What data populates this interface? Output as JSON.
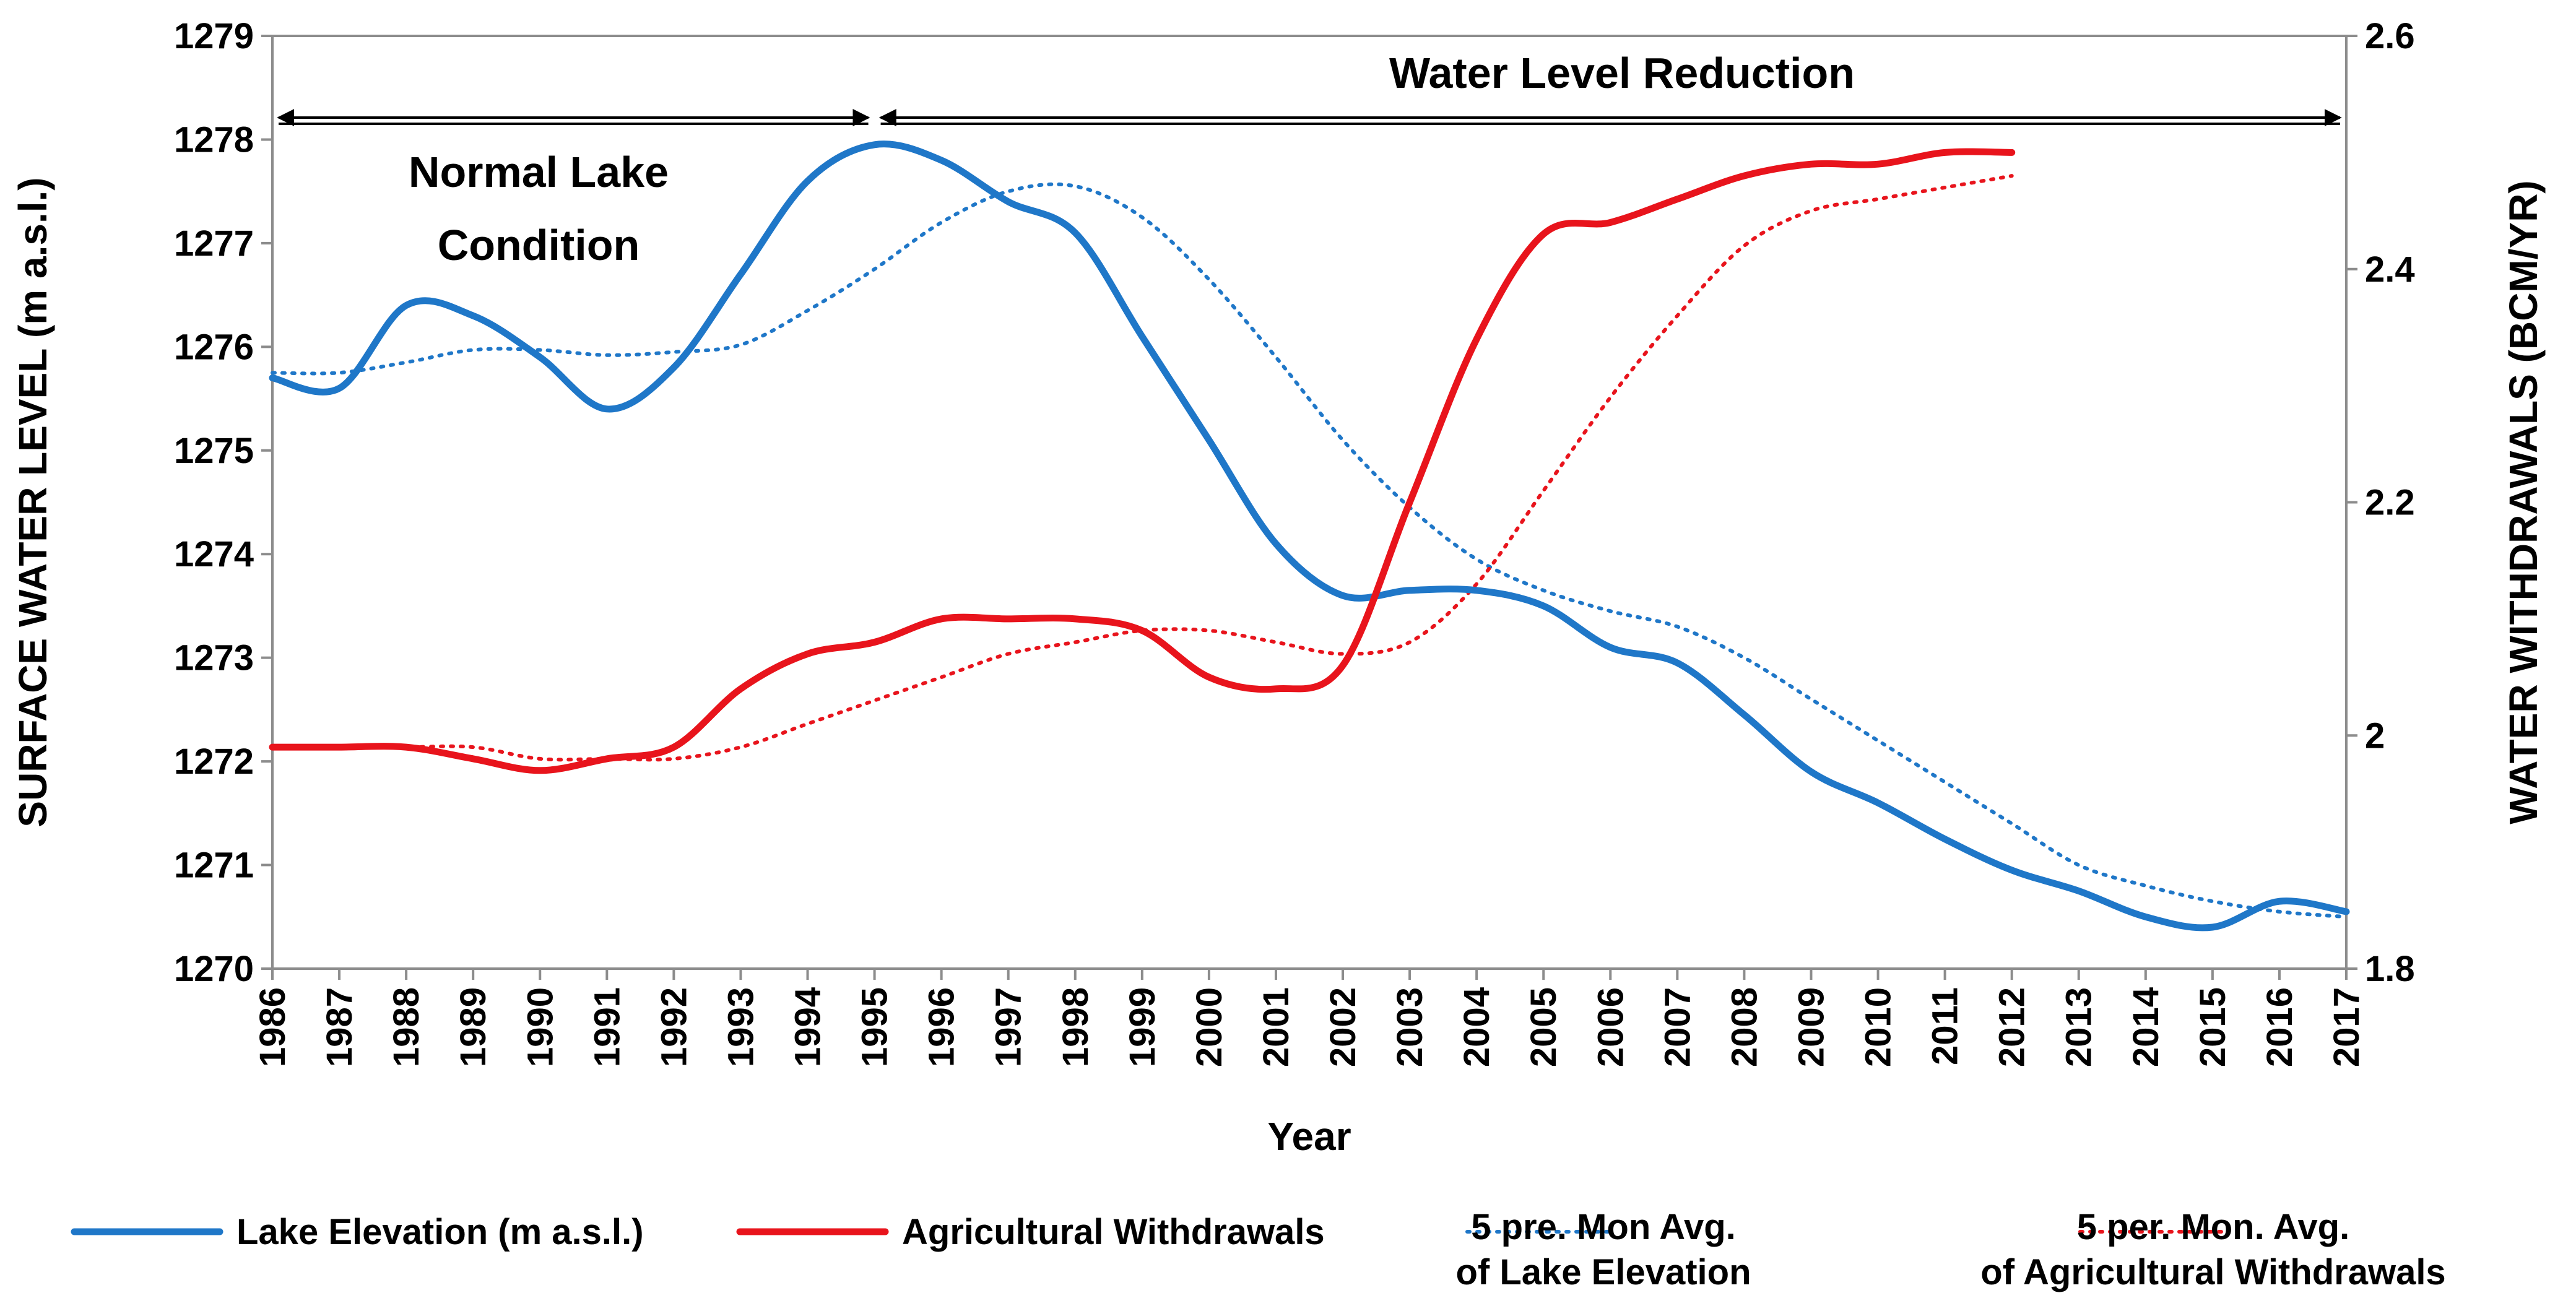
{
  "chart_data": {
    "type": "line",
    "title": "",
    "xlabel": "Year",
    "ylabel_left": "SURFACE WATER LEVEL (m a.s.l.)",
    "ylabel_right": "WATER WITHDRAWALS (BCM/YR)",
    "x": [
      1986,
      1987,
      1988,
      1989,
      1990,
      1991,
      1992,
      1993,
      1994,
      1995,
      1996,
      1997,
      1998,
      1999,
      2000,
      2001,
      2002,
      2003,
      2004,
      2005,
      2006,
      2007,
      2008,
      2009,
      2010,
      2011,
      2012,
      2013,
      2014,
      2015,
      2016,
      2017
    ],
    "x_tick_labels": [
      "1986",
      "1987",
      "1988",
      "1989",
      "1990",
      "1991",
      "1992",
      "1993",
      "1994",
      "1995",
      "1996",
      "1997",
      "1998",
      "1999",
      "2000",
      "2001",
      "2002",
      "2003",
      "2004",
      "2005",
      "2006",
      "2007",
      "2008",
      "2009",
      "2010",
      "2011",
      "2012",
      "2013",
      "2014",
      "2015",
      "2016",
      "2017"
    ],
    "ylim_left": [
      1270,
      1279
    ],
    "y_ticks_left": [
      "1270",
      "1271",
      "1272",
      "1273",
      "1274",
      "1275",
      "1276",
      "1277",
      "1278",
      "1279"
    ],
    "ylim_right": [
      1.8,
      2.6
    ],
    "y_ticks_right": [
      "1.8",
      "2",
      "2.2",
      "2.4",
      "2.6"
    ],
    "grid": false,
    "series": [
      {
        "name": "Lake Elevation (m a.s.l.)",
        "axis": "left",
        "color": "#1f77c8",
        "style": "solid",
        "x": [
          1986,
          1987,
          1988,
          1989,
          1990,
          1991,
          1992,
          1993,
          1994,
          1995,
          1996,
          1997,
          1998,
          1999,
          2000,
          2001,
          2002,
          2003,
          2004,
          2005,
          2006,
          2007,
          2008,
          2009,
          2010,
          2011,
          2012,
          2013,
          2014,
          2015,
          2016,
          2017
        ],
        "values": [
          1275.7,
          1275.6,
          1276.4,
          1276.3,
          1275.9,
          1275.4,
          1275.8,
          1276.7,
          1277.6,
          1277.95,
          1277.8,
          1277.4,
          1277.1,
          1276.1,
          1275.1,
          1274.1,
          1273.6,
          1273.65,
          1273.65,
          1273.5,
          1273.1,
          1272.95,
          1272.45,
          1271.9,
          1271.6,
          1271.25,
          1270.95,
          1270.75,
          1270.5,
          1270.4,
          1270.65,
          1270.55
        ]
      },
      {
        "name": "Agricultural Withdrawals",
        "axis": "right",
        "color": "#e8141c",
        "style": "solid",
        "x": [
          1986,
          1987,
          1988,
          1989,
          1990,
          1991,
          1992,
          1993,
          1994,
          1995,
          1996,
          1997,
          1998,
          1999,
          2000,
          2001,
          2002,
          2003,
          2004,
          2005,
          2006,
          2007,
          2008,
          2009,
          2010,
          2011,
          2012
        ],
        "values": [
          1.99,
          1.99,
          1.99,
          1.98,
          1.97,
          1.98,
          1.99,
          2.04,
          2.07,
          2.08,
          2.1,
          2.1,
          2.1,
          2.09,
          2.05,
          2.04,
          2.06,
          2.2,
          2.34,
          2.43,
          2.44,
          2.46,
          2.48,
          2.49,
          2.49,
          2.5,
          2.5
        ]
      },
      {
        "name": "5 pre. Mon Avg. of Lake Elevation",
        "axis": "left",
        "color": "#1f77c8",
        "style": "dotted",
        "x": [
          1986,
          1987,
          1988,
          1989,
          1990,
          1991,
          1992,
          1993,
          1994,
          1995,
          1996,
          1997,
          1998,
          1999,
          2000,
          2001,
          2002,
          2003,
          2004,
          2005,
          2006,
          2007,
          2008,
          2009,
          2010,
          2011,
          2012,
          2013,
          2014,
          2015,
          2016,
          2017
        ],
        "values": [
          1275.75,
          1275.75,
          1275.85,
          1275.97,
          1275.97,
          1275.92,
          1275.95,
          1276.02,
          1276.35,
          1276.75,
          1277.2,
          1277.5,
          1277.55,
          1277.25,
          1276.65,
          1275.9,
          1275.1,
          1274.45,
          1273.95,
          1273.65,
          1273.45,
          1273.3,
          1273.0,
          1272.6,
          1272.2,
          1271.8,
          1271.4,
          1271.0,
          1270.8,
          1270.65,
          1270.55,
          1270.5
        ]
      },
      {
        "name": "5 per. Mon. Avg. of Agricultural Withdrawals",
        "axis": "right",
        "color": "#e8141c",
        "style": "dotted",
        "x": [
          1986,
          1987,
          1988,
          1989,
          1990,
          1991,
          1992,
          1993,
          1994,
          1995,
          1996,
          1997,
          1998,
          1999,
          2000,
          2001,
          2002,
          2003,
          2004,
          2005,
          2006,
          2007,
          2008,
          2009,
          2010,
          2011,
          2012
        ],
        "values": [
          1.99,
          1.99,
          1.99,
          1.99,
          1.98,
          1.98,
          1.98,
          1.99,
          2.01,
          2.03,
          2.05,
          2.07,
          2.08,
          2.09,
          2.09,
          2.08,
          2.07,
          2.08,
          2.13,
          2.21,
          2.29,
          2.36,
          2.42,
          2.45,
          2.46,
          2.47,
          2.48
        ]
      }
    ],
    "annotations": [
      {
        "text_lines": [
          "Normal Lake",
          "Condition"
        ],
        "span": [
          1986,
          1995
        ]
      },
      {
        "text_lines": [
          "Water Level Reduction"
        ],
        "span": [
          1995,
          2017
        ]
      }
    ],
    "legend": {
      "placement": "bottom",
      "entries": [
        {
          "lines": [
            "Lake Elevation (m a.s.l.)"
          ],
          "color": "#1f77c8",
          "style": "solid"
        },
        {
          "lines": [
            "Agricultural Withdrawals"
          ],
          "color": "#e8141c",
          "style": "solid"
        },
        {
          "lines": [
            "5 pre. Mon Avg.",
            "of Lake Elevation"
          ],
          "color": "#1f77c8",
          "style": "dotted"
        },
        {
          "lines": [
            "5 per. Mon. Avg.",
            "of Agricultural Withdrawals"
          ],
          "color": "#e8141c",
          "style": "dotted"
        }
      ]
    }
  }
}
